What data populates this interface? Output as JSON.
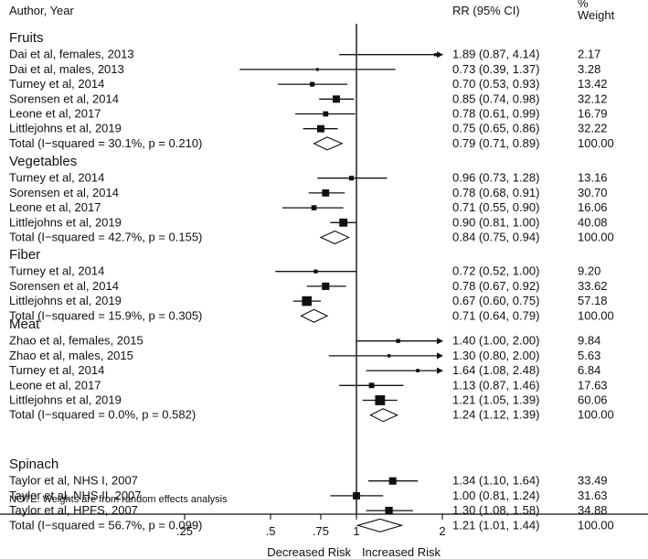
{
  "chart_data": {
    "type": "forest",
    "headers": {
      "study": "Author, Year",
      "rr": "RR (95% CI)",
      "weight_line1": "%",
      "weight_line2": "Weight"
    },
    "x_scale": "log",
    "xlim": [
      0.15,
      3.0
    ],
    "reference_line": 1,
    "x_ticks": [
      {
        "value": 0.25,
        "label": ".25"
      },
      {
        "value": 0.5,
        "label": ".5"
      },
      {
        "value": 0.75,
        "label": ".75"
      },
      {
        "value": 1,
        "label": "1"
      },
      {
        "value": 2,
        "label": "2"
      }
    ],
    "x_labels": {
      "left": "Decreased Risk",
      "right": "Increased Risk"
    },
    "note": "NOTE: Weights are from random effects analysis",
    "groups": [
      {
        "name": "Fruits",
        "studies": [
          {
            "label": "Dai et al, females, 2013",
            "rr": 1.89,
            "lo": 0.87,
            "hi": 4.14,
            "text": "1.89 (0.87, 4.14)",
            "weight": "2.17",
            "w": 2.17
          },
          {
            "label": "Dai et al, males, 2013",
            "rr": 0.73,
            "lo": 0.39,
            "hi": 1.37,
            "text": "0.73 (0.39, 1.37)",
            "weight": "3.28",
            "w": 3.28
          },
          {
            "label": "Turney et al, 2014",
            "rr": 0.7,
            "lo": 0.53,
            "hi": 0.93,
            "text": "0.70 (0.53, 0.93)",
            "weight": "13.42",
            "w": 13.42
          },
          {
            "label": "Sorensen et al, 2014",
            "rr": 0.85,
            "lo": 0.74,
            "hi": 0.98,
            "text": "0.85 (0.74, 0.98)",
            "weight": "32.12",
            "w": 32.12
          },
          {
            "label": "Leone et al, 2017",
            "rr": 0.78,
            "lo": 0.61,
            "hi": 0.99,
            "text": "0.78 (0.61, 0.99)",
            "weight": "16.79",
            "w": 16.79
          },
          {
            "label": "Littlejohns et al, 2019",
            "rr": 0.75,
            "lo": 0.65,
            "hi": 0.86,
            "text": "0.75 (0.65, 0.86)",
            "weight": "32.22",
            "w": 32.22
          }
        ],
        "total": {
          "label": "Total  (I−squared = 30.1%, p = 0.210)",
          "rr": 0.79,
          "lo": 0.71,
          "hi": 0.89,
          "text": "0.79 (0.71, 0.89)",
          "weight": "100.00"
        }
      },
      {
        "name": "Vegetables",
        "studies": [
          {
            "label": "Turney et al, 2014",
            "rr": 0.96,
            "lo": 0.73,
            "hi": 1.28,
            "text": "0.96 (0.73, 1.28)",
            "weight": "13.16",
            "w": 13.16
          },
          {
            "label": "Sorensen et al, 2014",
            "rr": 0.78,
            "lo": 0.68,
            "hi": 0.91,
            "text": "0.78 (0.68, 0.91)",
            "weight": "30.70",
            "w": 30.7
          },
          {
            "label": "Leone et al, 2017",
            "rr": 0.71,
            "lo": 0.55,
            "hi": 0.9,
            "text": "0.71 (0.55, 0.90)",
            "weight": "16.06",
            "w": 16.06
          },
          {
            "label": "Littlejohns et al, 2019",
            "rr": 0.9,
            "lo": 0.81,
            "hi": 1.0,
            "text": "0.90 (0.81, 1.00)",
            "weight": "40.08",
            "w": 40.08
          }
        ],
        "total": {
          "label": "Total  (I−squared = 42.7%, p = 0.155)",
          "rr": 0.84,
          "lo": 0.75,
          "hi": 0.94,
          "text": "0.84 (0.75, 0.94)",
          "weight": "100.00"
        }
      },
      {
        "name": "Fiber",
        "studies": [
          {
            "label": "Turney et al, 2014",
            "rr": 0.72,
            "lo": 0.52,
            "hi": 1.0,
            "text": "0.72 (0.52, 1.00)",
            "weight": "9.20",
            "w": 9.2
          },
          {
            "label": "Sorensen et al, 2014",
            "rr": 0.78,
            "lo": 0.67,
            "hi": 0.92,
            "text": "0.78 (0.67, 0.92)",
            "weight": "33.62",
            "w": 33.62
          },
          {
            "label": "Littlejohns et al, 2019",
            "rr": 0.67,
            "lo": 0.6,
            "hi": 0.75,
            "text": "0.67 (0.60, 0.75)",
            "weight": "57.18",
            "w": 57.18
          }
        ],
        "total": {
          "label": "Total  (I−squared = 15.9%, p = 0.305)",
          "rr": 0.71,
          "lo": 0.64,
          "hi": 0.79,
          "text": "0.71 (0.64, 0.79)",
          "weight": "100.00"
        }
      },
      {
        "name": "Meat",
        "studies": [
          {
            "label": "Zhao et al, females, 2015",
            "rr": 1.4,
            "lo": 1.0,
            "hi": 2.0,
            "text": "1.40 (1.00, 2.00)",
            "weight": "9.84",
            "w": 9.84,
            "arrow": true
          },
          {
            "label": "Zhao et al, males, 2015",
            "rr": 1.3,
            "lo": 0.8,
            "hi": 2.0,
            "text": "1.30 (0.80, 2.00)",
            "weight": "5.63",
            "w": 5.63,
            "arrow": true
          },
          {
            "label": "Turney et al, 2014",
            "rr": 1.64,
            "lo": 1.08,
            "hi": 2.48,
            "text": "1.64 (1.08, 2.48)",
            "weight": "6.84",
            "w": 6.84
          },
          {
            "label": "Leone et al, 2017",
            "rr": 1.13,
            "lo": 0.87,
            "hi": 1.46,
            "text": "1.13 (0.87, 1.46)",
            "weight": "17.63",
            "w": 17.63
          },
          {
            "label": "Littlejohns et al, 2019",
            "rr": 1.21,
            "lo": 1.05,
            "hi": 1.39,
            "text": "1.21 (1.05, 1.39)",
            "weight": "60.06",
            "w": 60.06
          }
        ],
        "total": {
          "label": "Total  (I−squared = 0.0%, p = 0.582)",
          "rr": 1.24,
          "lo": 1.12,
          "hi": 1.39,
          "text": "1.24 (1.12, 1.39)",
          "weight": "100.00"
        }
      },
      {
        "name": "Spinach",
        "studies": [
          {
            "label": "Taylor et al, NHS I, 2007",
            "rr": 1.34,
            "lo": 1.1,
            "hi": 1.64,
            "text": "1.34 (1.10, 1.64)",
            "weight": "33.49",
            "w": 33.49
          },
          {
            "label": "Taylor et al, NHS II, 2007",
            "rr": 1.0,
            "lo": 0.81,
            "hi": 1.24,
            "text": "1.00 (0.81, 1.24)",
            "weight": "31.63",
            "w": 31.63
          },
          {
            "label": "Taylor et al, HPFS, 2007",
            "rr": 1.3,
            "lo": 1.08,
            "hi": 1.58,
            "text": "1.30 (1.08, 1.58)",
            "weight": "34.88",
            "w": 34.88
          }
        ],
        "total": {
          "label": "Total  (I−squared = 56.7%, p = 0.099)",
          "rr": 1.21,
          "lo": 1.01,
          "hi": 1.44,
          "text": "1.21 (1.01, 1.44)",
          "weight": "100.00"
        }
      }
    ]
  }
}
